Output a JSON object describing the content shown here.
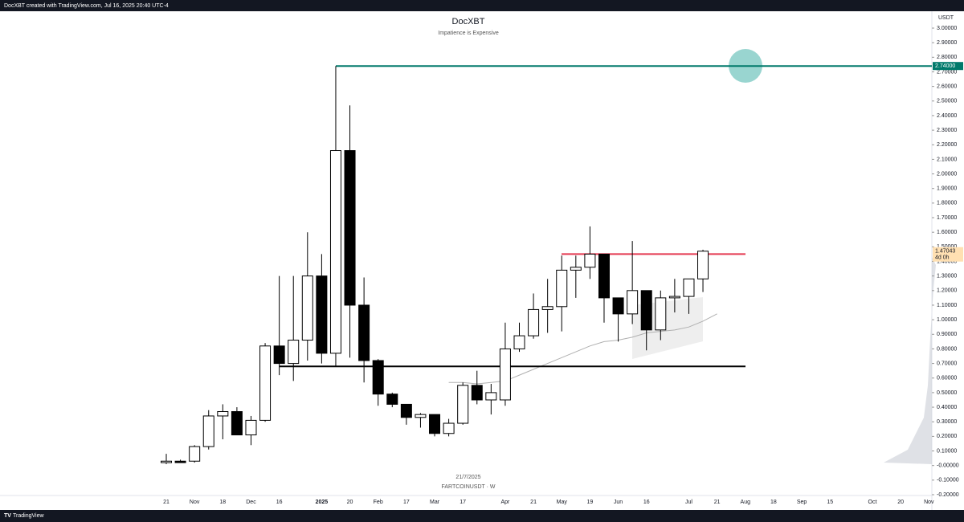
{
  "header": "DocXBT created with TradingView.com, Jul 16, 2025 20:40 UTC-4",
  "footer": "TradingView",
  "chart_data": {
    "type": "candlestick",
    "title": "DocXBT",
    "subtitle": "Impatience is Expensive",
    "currency": "USDT",
    "date_label": "21/7/2025",
    "symbol_label": "FARTCOINUSDT · W",
    "up_color": "#ffffff",
    "down_color": "#000000",
    "categories": [
      "21",
      null,
      "Nov",
      null,
      "18",
      null,
      "Dec",
      null,
      "16",
      null,
      null,
      "2025",
      null,
      "20",
      null,
      "Feb",
      null,
      "17",
      null,
      "Mar",
      null,
      "17",
      null,
      null,
      "Apr",
      null,
      "21",
      null,
      "May",
      null,
      "19",
      null,
      "Jun",
      null,
      "16",
      null,
      null,
      "Jul",
      null,
      "21",
      null,
      "Aug",
      null,
      "18",
      null,
      "Sep",
      null,
      "15",
      null,
      null,
      "Oct",
      null,
      "20",
      null,
      "Nov"
    ],
    "open": [
      0.02,
      0.03,
      0.03,
      0.13,
      0.34,
      0.37,
      0.21,
      0.31,
      0.82,
      0.7,
      0.86,
      1.3,
      0.77,
      2.16,
      1.1,
      0.72,
      0.49,
      0.42,
      0.33,
      0.35,
      0.22,
      0.29,
      0.55,
      0.45,
      0.45,
      0.8,
      0.89,
      1.07,
      1.09,
      1.34,
      1.36,
      1.45,
      1.15,
      1.04,
      1.2,
      0.93,
      1.15,
      1.16,
      1.28,
      null,
      null,
      null,
      null,
      null,
      null,
      null,
      null,
      null,
      null,
      null,
      null,
      null,
      null,
      null,
      null
    ],
    "high": [
      0.08,
      0.04,
      0.14,
      0.38,
      0.42,
      0.4,
      0.34,
      0.84,
      1.3,
      1.3,
      1.6,
      1.45,
      2.74,
      2.47,
      1.29,
      0.73,
      0.5,
      0.42,
      0.36,
      0.35,
      0.32,
      0.57,
      0.65,
      0.56,
      0.98,
      0.98,
      1.18,
      1.28,
      1.44,
      1.44,
      1.64,
      1.45,
      1.15,
      1.54,
      1.2,
      1.2,
      1.28,
      1.28,
      1.48,
      null,
      null,
      null,
      null,
      null,
      null,
      null,
      null,
      null,
      null,
      null,
      null,
      null,
      null,
      null,
      null
    ],
    "low": [
      0.01,
      0.02,
      0.02,
      0.11,
      0.18,
      0.21,
      0.14,
      0.3,
      0.62,
      0.58,
      0.72,
      0.7,
      0.68,
      0.74,
      0.57,
      0.41,
      0.4,
      0.28,
      0.26,
      0.2,
      0.2,
      0.28,
      0.42,
      0.35,
      0.41,
      0.78,
      0.87,
      0.91,
      0.92,
      1.15,
      1.28,
      0.98,
      0.85,
      0.97,
      0.79,
      0.86,
      1.05,
      1.04,
      1.19,
      null,
      null,
      null,
      null,
      null,
      null,
      null,
      null,
      null,
      null,
      null,
      null,
      null,
      null,
      null,
      null
    ],
    "close": [
      0.03,
      0.02,
      0.13,
      0.34,
      0.37,
      0.21,
      0.31,
      0.82,
      0.7,
      0.86,
      1.3,
      0.77,
      2.16,
      1.1,
      0.72,
      0.49,
      0.42,
      0.33,
      0.35,
      0.22,
      0.29,
      0.55,
      0.45,
      0.5,
      0.8,
      0.89,
      1.07,
      1.09,
      1.34,
      1.36,
      1.45,
      1.15,
      1.04,
      1.2,
      0.93,
      1.15,
      1.16,
      1.28,
      1.47,
      null,
      null,
      null,
      null,
      null,
      null,
      null,
      null,
      null,
      null,
      null,
      null,
      null,
      null,
      null,
      null
    ],
    "moving_average": {
      "color": "#b0b0b0",
      "values": [
        null,
        null,
        null,
        null,
        null,
        null,
        null,
        null,
        null,
        null,
        null,
        null,
        null,
        null,
        null,
        null,
        null,
        null,
        null,
        null,
        0.57,
        0.57,
        0.56,
        0.57,
        0.58,
        0.62,
        0.66,
        0.7,
        0.74,
        0.78,
        0.82,
        0.85,
        0.86,
        0.88,
        0.91,
        0.92,
        0.93,
        0.95,
        0.99,
        1.04,
        null,
        null,
        null,
        null,
        null,
        null,
        null,
        null,
        null,
        null,
        null,
        null,
        null,
        null,
        null
      ]
    },
    "levels": [
      {
        "value": 2.74,
        "label": "2.74000",
        "color": "#00796b"
      },
      {
        "value": 1.45,
        "color": "#e53950"
      },
      {
        "value": 0.68,
        "color": "#000000"
      }
    ],
    "last_price": {
      "value": 1.47043,
      "label": "1.47043",
      "countdown": "4d 0h"
    },
    "ylim": [
      -0.2,
      3.0
    ],
    "yticks": [
      {
        "value": 3.0,
        "label": "3.00000"
      },
      {
        "value": 2.9,
        "label": "2.90000"
      },
      {
        "value": 2.8,
        "label": "2.80000"
      },
      {
        "value": 2.7,
        "label": "2.70000"
      },
      {
        "value": 2.6,
        "label": "2.60000"
      },
      {
        "value": 2.5,
        "label": "2.50000"
      },
      {
        "value": 2.4,
        "label": "2.40000"
      },
      {
        "value": 2.3,
        "label": "2.30000"
      },
      {
        "value": 2.2,
        "label": "2.20000"
      },
      {
        "value": 2.1,
        "label": "2.10000"
      },
      {
        "value": 2.0,
        "label": "2.00000"
      },
      {
        "value": 1.9,
        "label": "1.90000"
      },
      {
        "value": 1.8,
        "label": "1.80000"
      },
      {
        "value": 1.7,
        "label": "1.70000"
      },
      {
        "value": 1.6,
        "label": "1.60000"
      },
      {
        "value": 1.5,
        "label": "1.50000"
      },
      {
        "value": 1.4,
        "label": "1.40000"
      },
      {
        "value": 1.3,
        "label": "1.30000"
      },
      {
        "value": 1.2,
        "label": "1.20000"
      },
      {
        "value": 1.1,
        "label": "1.10000"
      },
      {
        "value": 1.0,
        "label": "1.00000"
      },
      {
        "value": 0.9,
        "label": "0.90000"
      },
      {
        "value": 0.8,
        "label": "0.80000"
      },
      {
        "value": 0.7,
        "label": "0.70000"
      },
      {
        "value": 0.6,
        "label": "0.60000"
      },
      {
        "value": 0.5,
        "label": "0.50000"
      },
      {
        "value": 0.4,
        "label": "0.40000"
      },
      {
        "value": 0.3,
        "label": "0.30000"
      },
      {
        "value": 0.2,
        "label": "0.20000"
      },
      {
        "value": 0.1,
        "label": "0.10000"
      },
      {
        "value": 0,
        "label": "-0.00000"
      },
      {
        "value": -0.1,
        "label": "-0.10000"
      },
      {
        "value": -0.2,
        "label": "-0.20000"
      }
    ]
  }
}
